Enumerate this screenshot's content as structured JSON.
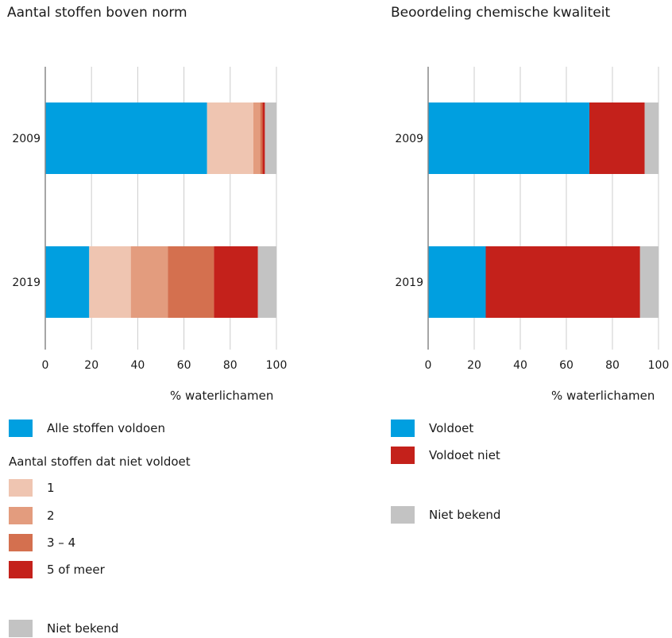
{
  "colors": {
    "blue": "#009fe0",
    "peach1": "#efc5b1",
    "salmon2": "#e39c7e",
    "orange34": "#d4704f",
    "red": "#c4211b",
    "grey": "#c3c3c3",
    "axis": "#888888",
    "grid": "#cccccc"
  },
  "chart_data": [
    {
      "type": "bar",
      "orientation": "horizontal",
      "stacked": true,
      "title": "Aantal stoffen boven norm",
      "xlabel": "% waterlichamen",
      "ylabel": "",
      "xlim": [
        0,
        100
      ],
      "xticks": [
        "0",
        "20",
        "40",
        "60",
        "80",
        "100"
      ],
      "categories": [
        "2009",
        "2019"
      ],
      "series": [
        {
          "name": "Alle stoffen voldoen",
          "color": "#009fe0",
          "values": [
            70,
            19
          ]
        },
        {
          "name": "1",
          "color": "#efc5b1",
          "values": [
            20,
            18
          ]
        },
        {
          "name": "2",
          "color": "#e39c7e",
          "values": [
            3,
            16
          ]
        },
        {
          "name": "3 – 4",
          "color": "#d4704f",
          "values": [
            1,
            20
          ]
        },
        {
          "name": "5 of meer",
          "color": "#c4211b",
          "values": [
            1,
            19
          ]
        },
        {
          "name": "Niet bekend",
          "color": "#c3c3c3",
          "values": [
            5,
            8
          ]
        }
      ],
      "grid": true,
      "legend_placement": "bottom"
    },
    {
      "type": "bar",
      "orientation": "horizontal",
      "stacked": true,
      "title": "Beoordeling chemische kwaliteit",
      "xlabel": "% waterlichamen",
      "ylabel": "",
      "xlim": [
        0,
        100
      ],
      "xticks": [
        "0",
        "20",
        "40",
        "60",
        "80",
        "100"
      ],
      "categories": [
        "2009",
        "2019"
      ],
      "series": [
        {
          "name": "Voldoet",
          "color": "#009fe0",
          "values": [
            70,
            25
          ]
        },
        {
          "name": "Voldoet niet",
          "color": "#c4211b",
          "values": [
            24,
            67
          ]
        },
        {
          "name": "Niet bekend",
          "color": "#c3c3c3",
          "values": [
            6,
            8
          ]
        }
      ],
      "grid": true,
      "legend_placement": "bottom"
    }
  ],
  "left_legend": {
    "main": {
      "label": "Alle stoffen voldoen",
      "color": "#009fe0"
    },
    "subtitle": "Aantal stoffen dat niet voldoet",
    "items": [
      {
        "label": "1",
        "color": "#efc5b1"
      },
      {
        "label": "2",
        "color": "#e39c7e"
      },
      {
        "label": "3 – 4",
        "color": "#d4704f"
      },
      {
        "label": "5 of meer",
        "color": "#c4211b"
      }
    ],
    "unknown": {
      "label": "Niet bekend",
      "color": "#c3c3c3"
    }
  },
  "right_legend": {
    "items": [
      {
        "label": "Voldoet",
        "color": "#009fe0"
      },
      {
        "label": "Voldoet niet",
        "color": "#c4211b"
      }
    ],
    "unknown": {
      "label": "Niet bekend",
      "color": "#c3c3c3"
    }
  }
}
